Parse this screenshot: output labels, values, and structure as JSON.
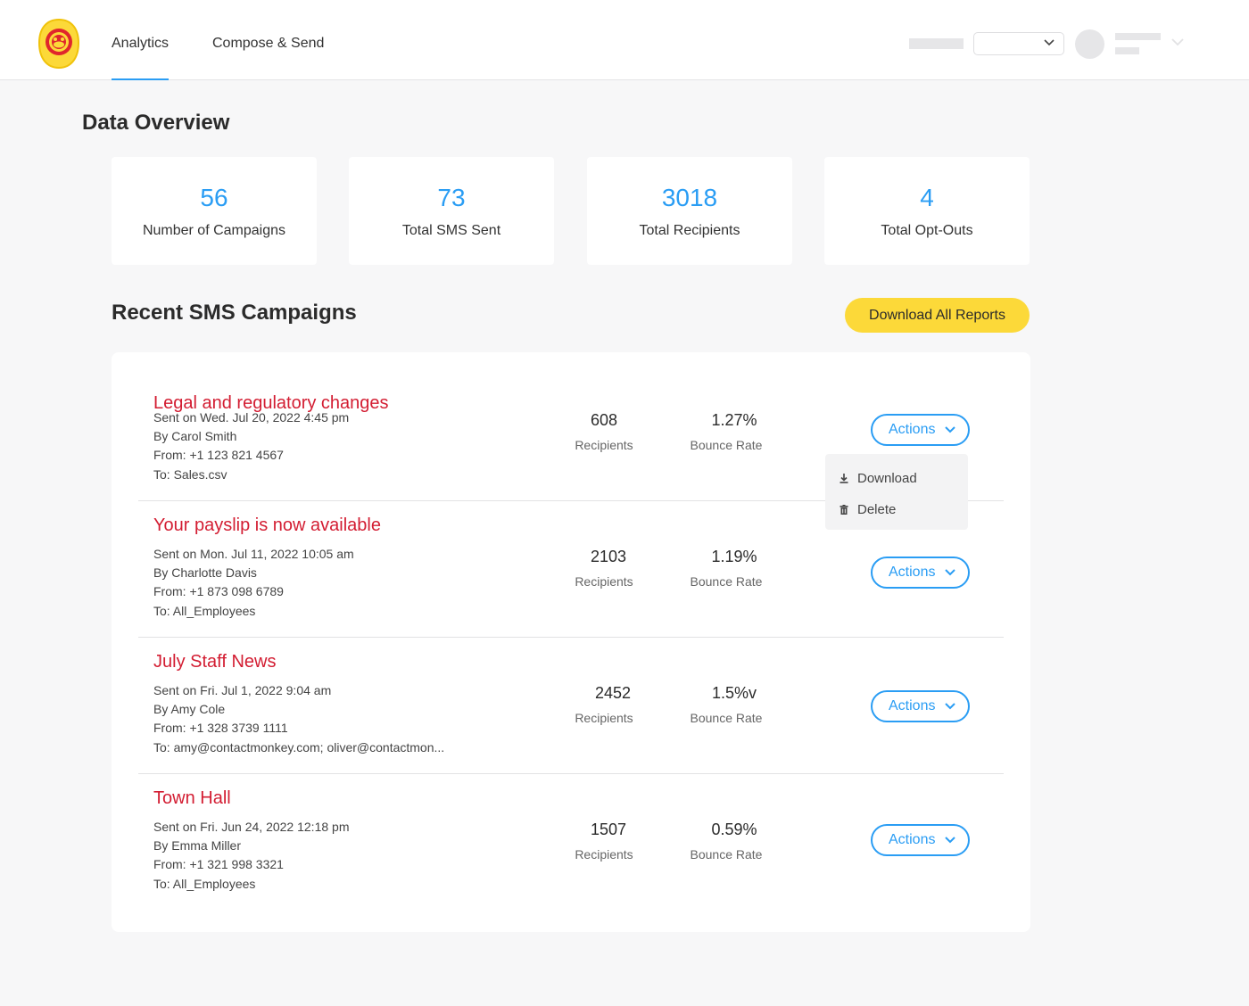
{
  "nav": {
    "tabs": [
      {
        "label": "Analytics",
        "active": true
      },
      {
        "label": "Compose & Send",
        "active": false
      }
    ]
  },
  "colors": {
    "accent": "#2a9df4",
    "brand_yellow": "#fcd939",
    "campaign_title": "#d31d32",
    "logo_red": "#e0262c"
  },
  "overview": {
    "title": "Data Overview",
    "stats": [
      {
        "value": "56",
        "label": "Number of Campaigns"
      },
      {
        "value": "73",
        "label": "Total SMS Sent"
      },
      {
        "value": "3018",
        "label": "Total Recipients"
      },
      {
        "value": "4",
        "label": "Total Opt-Outs"
      }
    ]
  },
  "campaigns": {
    "title": "Recent SMS Campaigns",
    "download_all_label": "Download All Reports",
    "recipients_label": "Recipients",
    "bounce_label": "Bounce Rate",
    "actions_label": "Actions",
    "rows": [
      {
        "title": "Legal and regulatory changes",
        "sent": "Sent on Wed. Jul 20, 2022 4:45 pm",
        "by": "By Carol Smith",
        "from": "From: +1 123 821 4567",
        "to": "To: Sales.csv",
        "recipients": "608",
        "bounce": "1.27%"
      },
      {
        "title": "Your payslip is now available",
        "sent": "Sent on Mon. Jul 11, 2022 10:05 am",
        "by": "By Charlotte Davis",
        "from": "From: +1 873 098 6789",
        "to": "To: All_Employees",
        "recipients": "2103",
        "bounce": "1.19%"
      },
      {
        "title": "July Staff News",
        "sent": "Sent on Fri. Jul 1, 2022 9:04 am",
        "by": "By Amy Cole",
        "from": "From: +1 328 3739 1111",
        "to": "To: amy@contactmonkey.com; oliver@contactmon...",
        "recipients": "2452",
        "bounce": "1.5%v"
      },
      {
        "title": "Town Hall",
        "sent": "Sent on Fri. Jun 24, 2022 12:18 pm",
        "by": "By Emma Miller",
        "from": "From: +1 321 998 3321",
        "to": "To: All_Employees",
        "recipients": "1507",
        "bounce": "0.59%"
      }
    ]
  },
  "dropdown": {
    "items": [
      {
        "label": "Download",
        "icon": "download-icon"
      },
      {
        "label": "Delete",
        "icon": "trash-icon"
      }
    ]
  }
}
